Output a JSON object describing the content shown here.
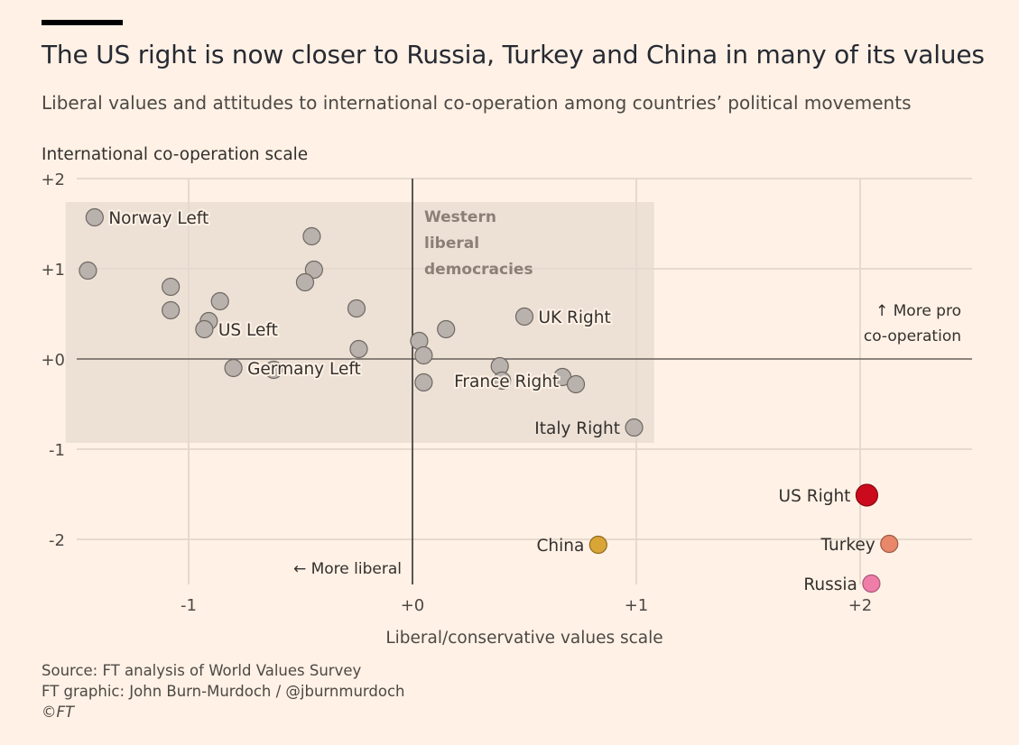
{
  "header": {
    "title": "The US right is now closer to Russia, Turkey and China in many of its values",
    "subtitle": "Liberal values and attitudes to international co-operation among countries’ political movements"
  },
  "chart_data": {
    "type": "scatter",
    "xlabel": "Liberal/conservative values scale",
    "ylabel": "International co-operation scale",
    "xlim": [
      -1.5,
      2.5
    ],
    "ylim": [
      -2.5,
      2
    ],
    "x_ticks": [
      {
        "value": -1,
        "label": "-1"
      },
      {
        "value": 0,
        "label": "+0"
      },
      {
        "value": 1,
        "label": "+1"
      },
      {
        "value": 2,
        "label": "+2"
      }
    ],
    "y_ticks": [
      {
        "value": 2,
        "label": "+2"
      },
      {
        "value": 1,
        "label": "+1"
      },
      {
        "value": 0,
        "label": "+0"
      },
      {
        "value": -1,
        "label": "-1"
      },
      {
        "value": -2,
        "label": "-2"
      }
    ],
    "grid": true,
    "region": {
      "label_lines": [
        "Western",
        "liberal",
        "democracies"
      ],
      "x_range": [
        -1.55,
        1.08
      ],
      "y_range": [
        -0.93,
        1.74
      ],
      "color": "#EDE1D6"
    },
    "annotations": {
      "more_liberal": "← More liberal",
      "more_pro_line1": "↑ More pro",
      "more_pro_line2": "co-operation"
    },
    "colors": {
      "western": "#B9B1AB",
      "us_right": "#CC0A1D",
      "turkey": "#E9876A",
      "russia": "#F07DA8",
      "china": "#D9A536"
    },
    "points": [
      {
        "x": -1.42,
        "y": 1.57,
        "label": "Norway Left",
        "group": "western",
        "label_side": "right"
      },
      {
        "x": -1.45,
        "y": 0.98,
        "group": "western"
      },
      {
        "x": -1.08,
        "y": 0.8,
        "group": "western"
      },
      {
        "x": -1.08,
        "y": 0.54,
        "group": "western"
      },
      {
        "x": -0.86,
        "y": 0.64,
        "group": "western"
      },
      {
        "x": -0.91,
        "y": 0.42,
        "group": "western"
      },
      {
        "x": -0.93,
        "y": 0.33,
        "label": "US Left",
        "group": "western",
        "label_side": "right"
      },
      {
        "x": -0.8,
        "y": -0.1,
        "label": "Germany Left",
        "group": "western",
        "label_side": "right"
      },
      {
        "x": -0.62,
        "y": -0.12,
        "group": "western"
      },
      {
        "x": -0.45,
        "y": 1.36,
        "group": "western"
      },
      {
        "x": -0.44,
        "y": 0.99,
        "group": "western"
      },
      {
        "x": -0.48,
        "y": 0.85,
        "group": "western"
      },
      {
        "x": -0.25,
        "y": 0.56,
        "group": "western"
      },
      {
        "x": -0.24,
        "y": 0.11,
        "group": "western"
      },
      {
        "x": 0.03,
        "y": 0.2,
        "group": "western"
      },
      {
        "x": 0.05,
        "y": 0.04,
        "group": "western"
      },
      {
        "x": 0.05,
        "y": -0.26,
        "group": "western"
      },
      {
        "x": 0.15,
        "y": 0.33,
        "group": "western"
      },
      {
        "x": 0.5,
        "y": 0.47,
        "label": "UK Right",
        "group": "western",
        "label_side": "right"
      },
      {
        "x": 0.39,
        "y": -0.08,
        "group": "western"
      },
      {
        "x": 0.4,
        "y": -0.24,
        "label": "France Right",
        "group": "western",
        "label_side": "center"
      },
      {
        "x": 0.67,
        "y": -0.2,
        "group": "western"
      },
      {
        "x": 0.73,
        "y": -0.28,
        "group": "western"
      },
      {
        "x": 0.99,
        "y": -0.76,
        "label": "Italy Right",
        "group": "western",
        "label_side": "left"
      },
      {
        "x": 2.03,
        "y": -1.51,
        "label": "US Right",
        "group": "us_right",
        "label_side": "left"
      },
      {
        "x": 2.13,
        "y": -2.05,
        "label": "Turkey",
        "group": "turkey",
        "label_side": "left"
      },
      {
        "x": 2.05,
        "y": -2.49,
        "label": "Russia",
        "group": "russia",
        "label_side": "left"
      },
      {
        "x": 0.83,
        "y": -2.06,
        "label": "China",
        "group": "china",
        "label_side": "left"
      }
    ]
  },
  "footer": {
    "source": "Source: FT analysis of World Values Survey",
    "credit": "FT graphic: John Burn-Murdoch / @jburnmurdoch",
    "copyright": "©FT"
  }
}
